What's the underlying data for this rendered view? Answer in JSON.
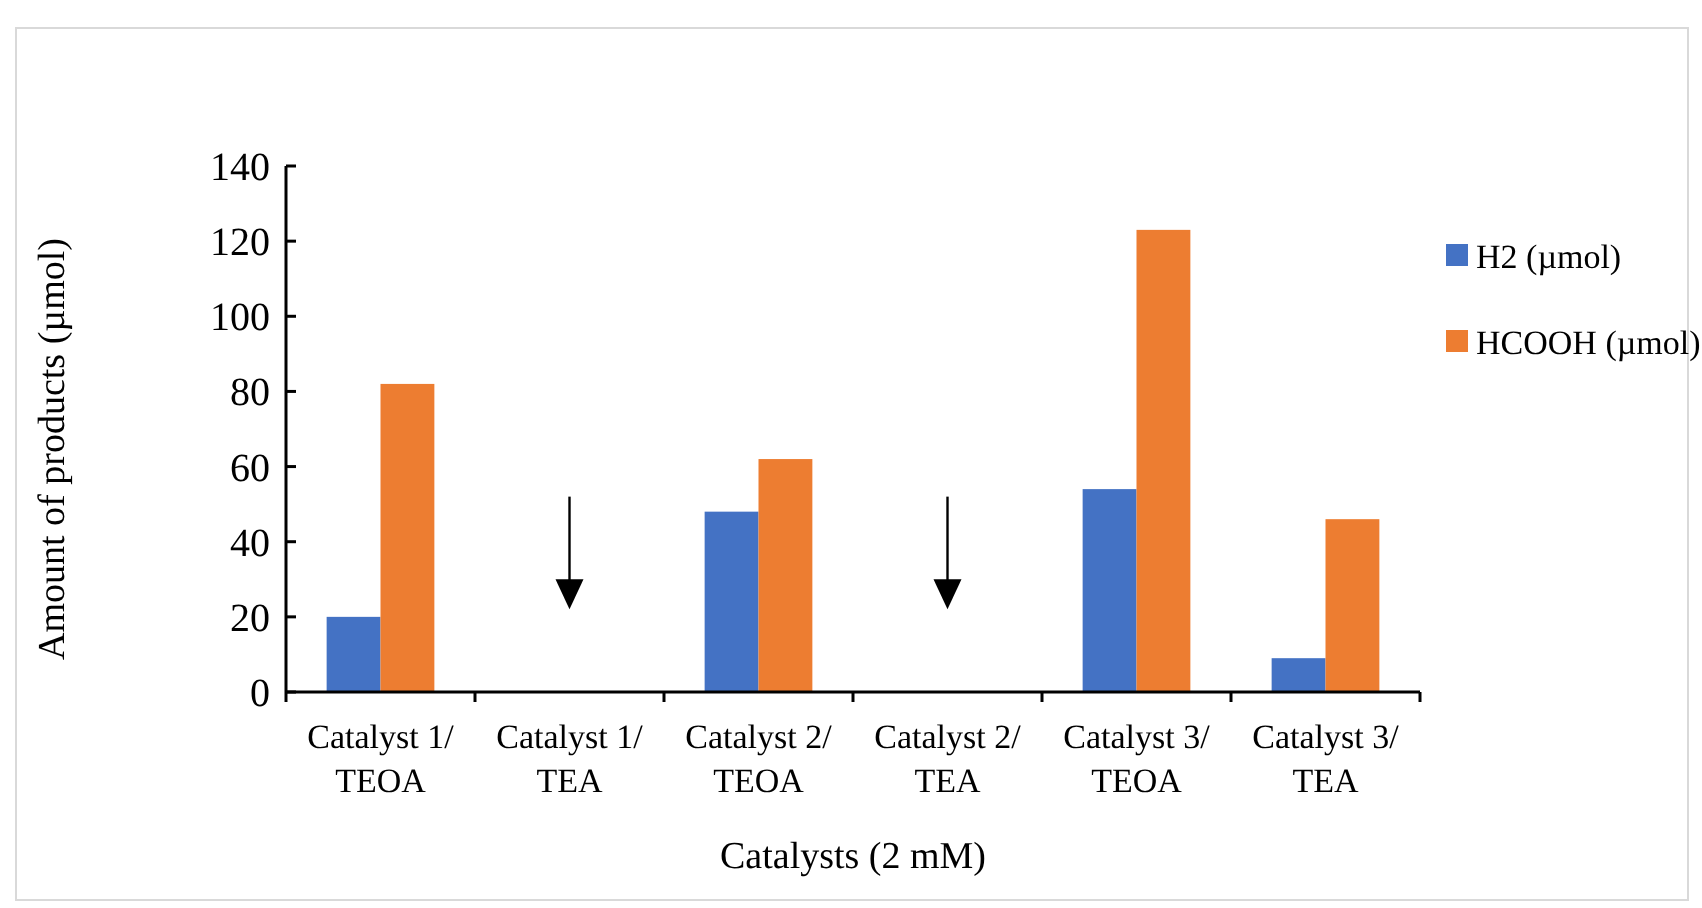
{
  "chart_data": {
    "type": "bar",
    "xlabel": "Catalysts (2 mM)",
    "ylabel": "Amount of products (µmol)",
    "categories": [
      "Catalyst 1/TEOA",
      "Catalyst 1/TEA",
      "Catalyst 2/TEOA",
      "Catalyst 2/TEA",
      "Catalyst 3/TEOA",
      "Catalyst 3/TEA"
    ],
    "series": [
      {
        "name": "H2 (µmol)",
        "color": "#4472c4",
        "values": [
          20,
          0,
          48,
          0,
          54,
          9
        ]
      },
      {
        "name": "HCOOH (µmol)",
        "color": "#ed7d31",
        "values": [
          82,
          0,
          62,
          0,
          123,
          46
        ]
      }
    ],
    "ylim": [
      0,
      140
    ],
    "yticks": [
      0,
      20,
      40,
      60,
      80,
      100,
      120,
      140
    ],
    "grid": false,
    "legend": "right"
  }
}
